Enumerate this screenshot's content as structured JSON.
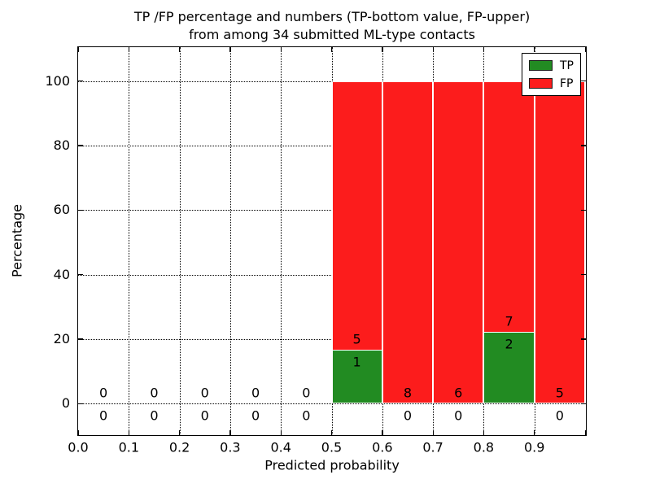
{
  "title": {
    "line1": "TP /FP percentage and numbers (TP-bottom value, FP-upper)",
    "line2": "from among 34 submitted ML-type contacts"
  },
  "axes": {
    "xlabel": "Predicted probability",
    "ylabel": "Percentage"
  },
  "legend": {
    "position": "upper right",
    "items": [
      {
        "label": "TP",
        "color": "#228b22"
      },
      {
        "label": "FP",
        "color": "#fc1c1c"
      }
    ]
  },
  "chart_data": {
    "type": "bar",
    "variant": "stacked-percentage-histogram",
    "title": "TP /FP percentage and numbers (TP-bottom value, FP-upper)\nfrom among 34 submitted ML-type contacts",
    "xlabel": "Predicted probability",
    "ylabel": "Percentage",
    "xlim": [
      0.0,
      1.0
    ],
    "ylim": [
      -9.5,
      110.5
    ],
    "grid": "dotted-black",
    "legend_position": "upper right",
    "total_contacts": 34,
    "bin_edges": [
      0.0,
      0.1,
      0.2,
      0.3,
      0.4,
      0.5,
      0.6,
      0.7,
      0.8,
      0.9,
      1.0
    ],
    "categories": [
      "0.0-0.1",
      "0.1-0.2",
      "0.2-0.3",
      "0.3-0.4",
      "0.4-0.5",
      "0.5-0.6",
      "0.6-0.7",
      "0.7-0.8",
      "0.8-0.9",
      "0.9-1.0"
    ],
    "series": [
      {
        "name": "TP",
        "color": "#228b22",
        "counts": [
          0,
          0,
          0,
          0,
          0,
          1,
          0,
          0,
          2,
          0
        ],
        "pct": [
          0,
          0,
          0,
          0,
          0,
          16.67,
          0,
          0,
          22.22,
          0
        ]
      },
      {
        "name": "FP",
        "color": "#fc1c1c",
        "counts": [
          0,
          0,
          0,
          0,
          0,
          5,
          8,
          6,
          7,
          5
        ],
        "pct": [
          0,
          0,
          0,
          0,
          0,
          83.33,
          100,
          100,
          77.78,
          100
        ]
      }
    ],
    "xticks": {
      "values": [
        0.0,
        0.1,
        0.2,
        0.3,
        0.4,
        0.5,
        0.6,
        0.7,
        0.8,
        0.9,
        1.0
      ],
      "labels": [
        "0.0",
        "0.1",
        "0.2",
        "0.3",
        "0.4",
        "0.5",
        "0.6",
        "0.7",
        "0.8",
        "0.9",
        ""
      ]
    },
    "yticks": {
      "values": [
        0,
        20,
        40,
        60,
        80,
        100
      ],
      "labels": [
        "0",
        "20",
        "40",
        "60",
        "80",
        "100"
      ]
    }
  }
}
